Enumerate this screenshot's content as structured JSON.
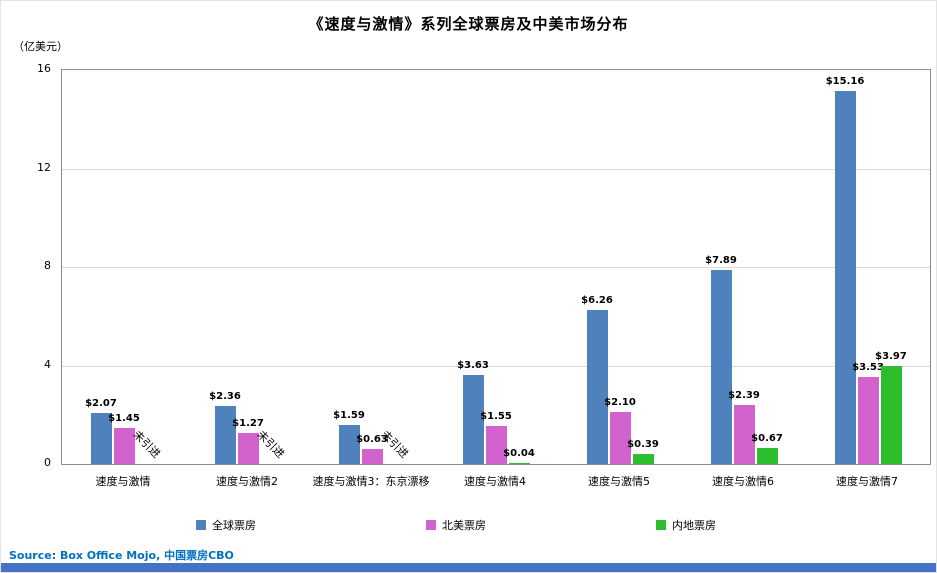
{
  "chart_data": {
    "type": "bar",
    "title": "《速度与激情》系列全球票房及中美市场分布",
    "ylabel": "（亿美元）",
    "xlabel": "",
    "ylim": [
      0,
      16
    ],
    "yticks": [
      0,
      4,
      8,
      12,
      16
    ],
    "grid": true,
    "legend_position": "bottom",
    "categories": [
      "速度与激情",
      "速度与激情2",
      "速度与激情3：东京漂移",
      "速度与激情4",
      "速度与激情5",
      "速度与激情6",
      "速度与激情7"
    ],
    "series": [
      {
        "name": "全球票房",
        "color": "#4F81BD",
        "values": [
          2.07,
          2.36,
          1.59,
          3.63,
          6.26,
          7.89,
          15.16
        ],
        "labels": [
          "$2.07",
          "$2.36",
          "$1.59",
          "$3.63",
          "$6.26",
          "$7.89",
          "$15.16"
        ]
      },
      {
        "name": "北美票房",
        "color": "#D263CE",
        "values": [
          1.45,
          1.27,
          0.63,
          1.55,
          2.1,
          2.39,
          3.53
        ],
        "labels": [
          "$1.45",
          "$1.27",
          "$0.63",
          "$1.55",
          "$2.10",
          "$2.39",
          "$3.53"
        ]
      },
      {
        "name": "内地票房",
        "color": "#2DBE2D",
        "values": [
          null,
          null,
          null,
          0.04,
          0.39,
          0.67,
          3.97
        ],
        "labels": [
          "未引进",
          "未引进",
          "未引进",
          "$0.04",
          "$0.39",
          "$0.67",
          "$3.97"
        ]
      }
    ],
    "not_imported_label": "未引进"
  },
  "source": {
    "text": "Source:  Box Office Mojo, 中国票房CBO"
  },
  "colors": {
    "source_text": "#0070C0",
    "footer_bar": "#4472C4",
    "grid": "#D9D9D9",
    "axis": "#8C8C8C"
  }
}
